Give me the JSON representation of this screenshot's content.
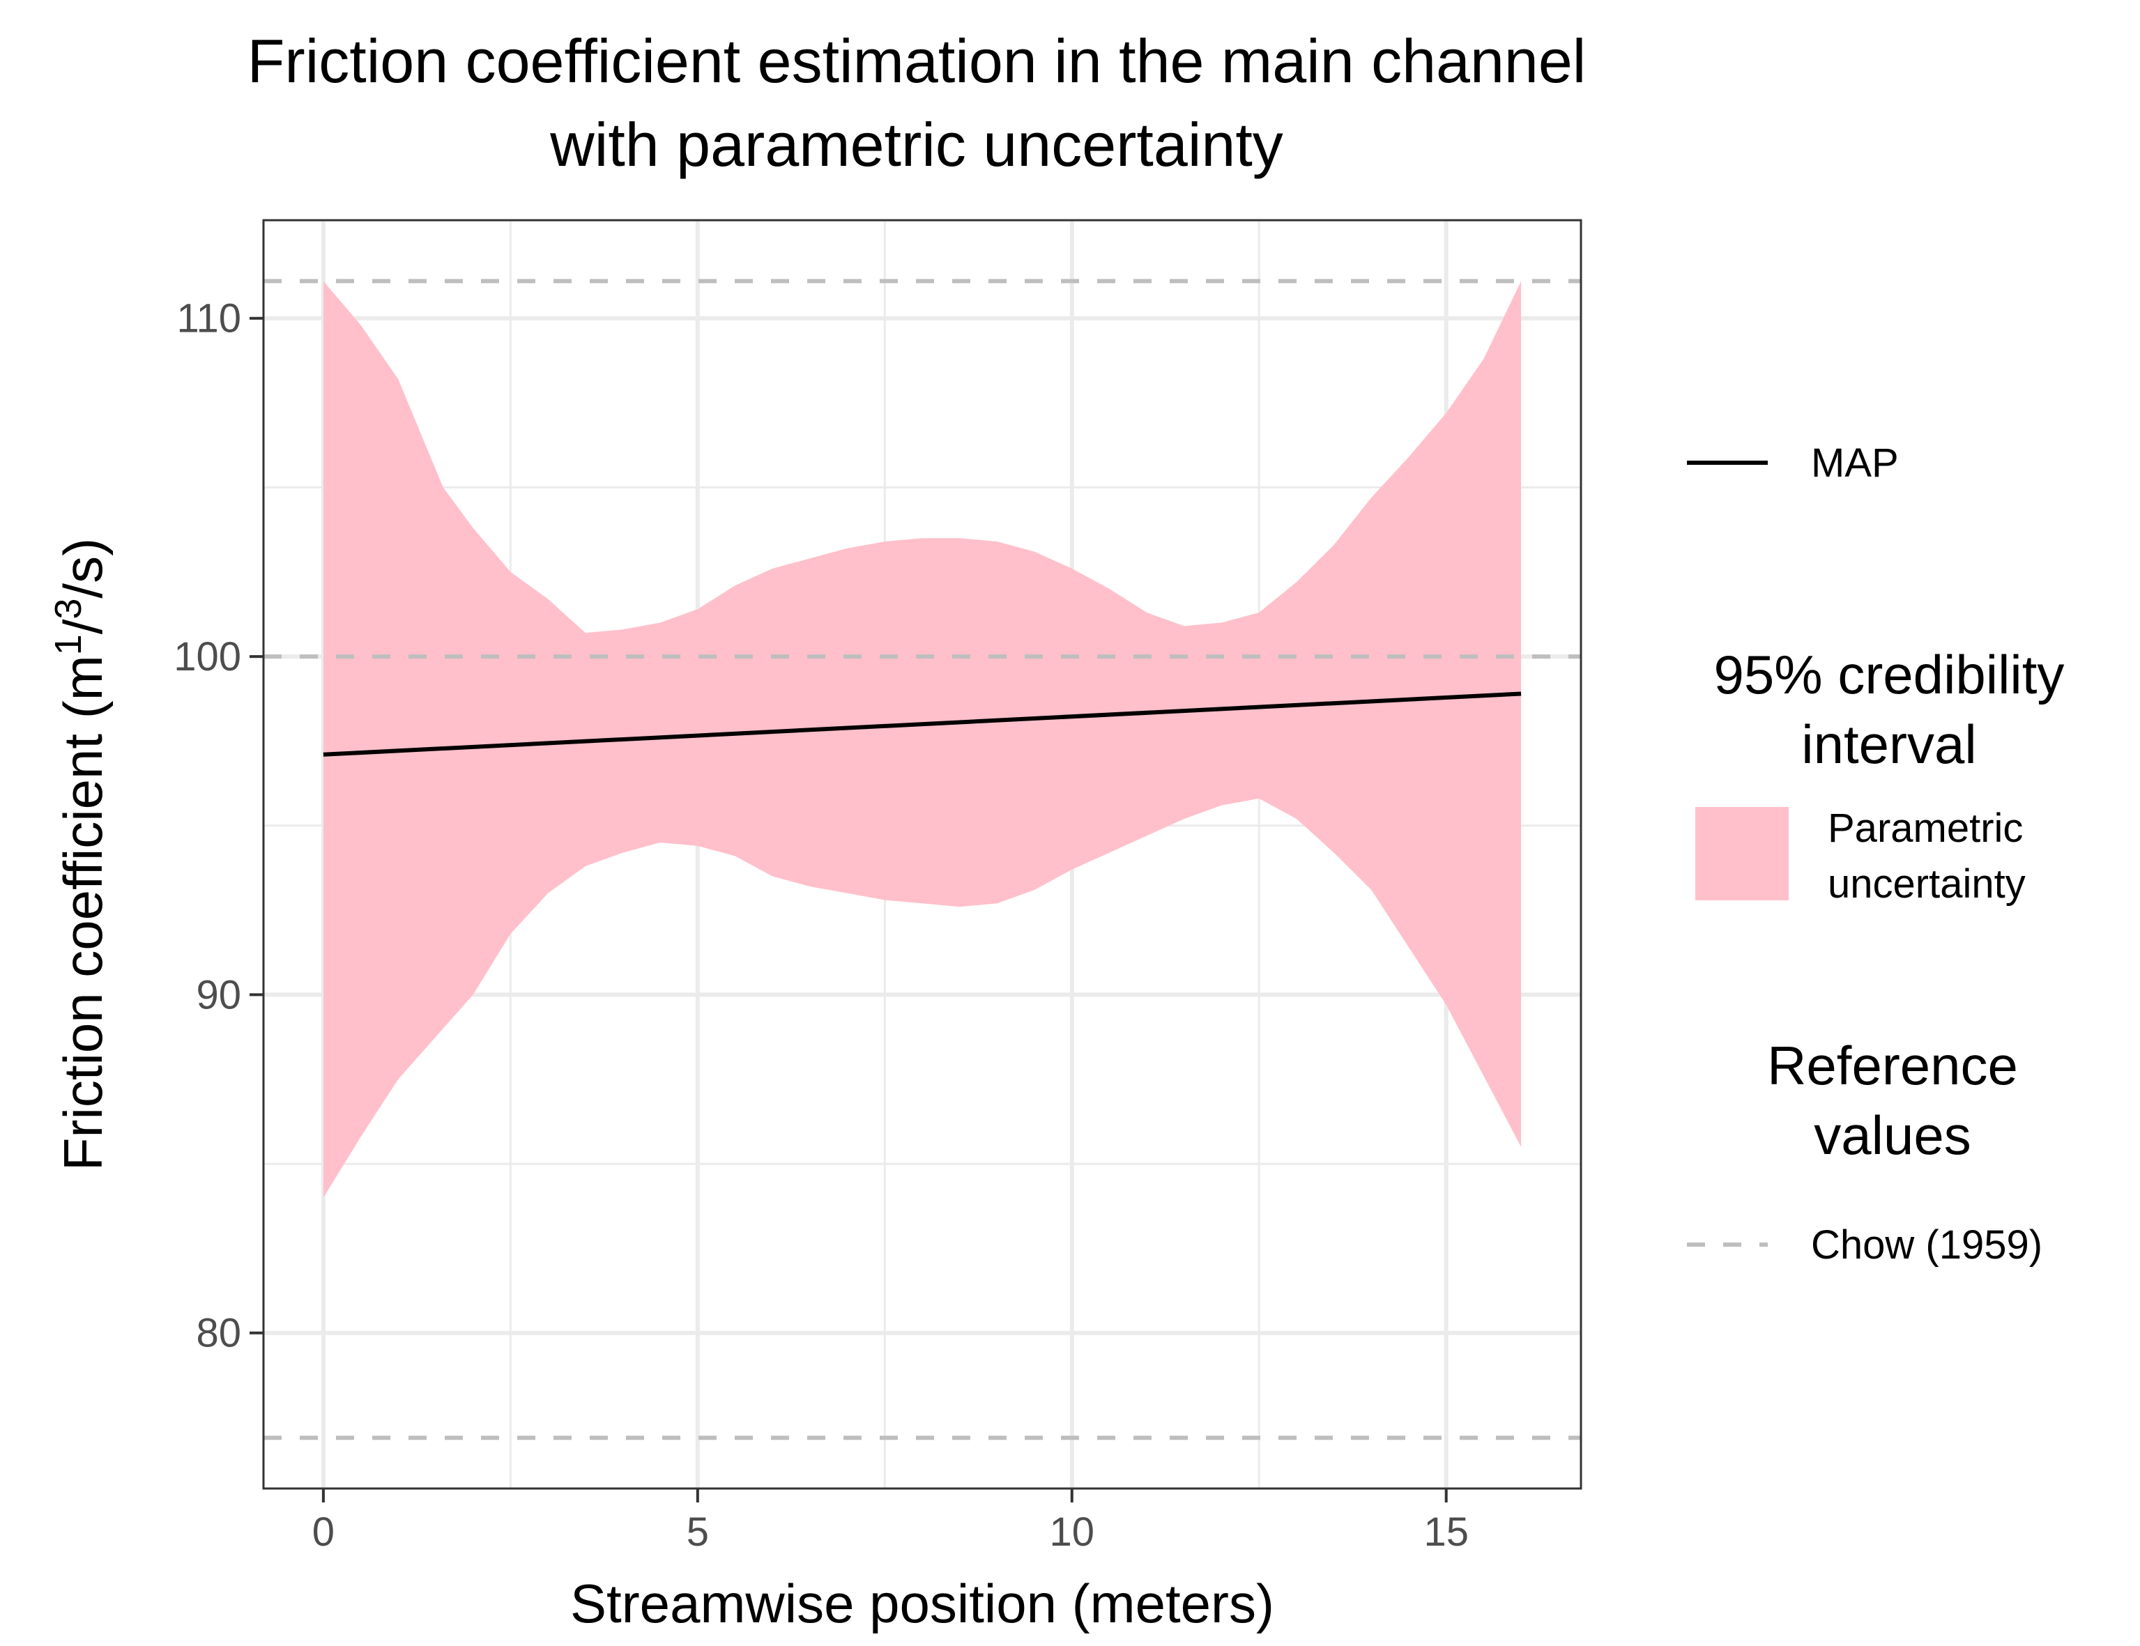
{
  "chart_data": {
    "type": "line",
    "title_lines": [
      "Friction coefficient estimation in the main channel",
      "with parametric uncertainty"
    ],
    "xlabel": "Streamwise position (meters)",
    "ylabel": {
      "main": "Friction coefficient (m",
      "sup1": "1",
      "slash": "/",
      "sup2": "3",
      "tail": "/s)"
    },
    "xlim": [
      -0.8,
      16.8
    ],
    "ylim": [
      75.4,
      112.9
    ],
    "x_ticks": [
      0,
      5,
      10,
      15
    ],
    "y_ticks": [
      80,
      90,
      100,
      110
    ],
    "grid": true,
    "colors": {
      "band": "#ffc0cb",
      "map": "#000000",
      "reference": "#bebebe",
      "grid": "#ebebeb",
      "border": "#333333",
      "tick_text": "#4d4d4d"
    },
    "series": [
      {
        "name": "MAP",
        "x": [
          0,
          16
        ],
        "y": [
          97.1,
          98.9
        ]
      },
      {
        "name": "Parametric uncertainty",
        "kind": "band",
        "x": [
          0,
          0.5,
          1,
          1.6,
          2,
          2.5,
          3,
          3.5,
          4,
          4.5,
          5,
          5.5,
          6,
          6.5,
          7,
          7.5,
          8,
          8.5,
          9,
          9.5,
          10,
          10.5,
          11,
          11.5,
          12,
          12.5,
          13,
          13.5,
          14,
          14.5,
          15,
          15.5,
          16
        ],
        "upper": [
          111.1,
          109.8,
          108.2,
          105.0,
          103.8,
          102.5,
          101.7,
          100.7,
          100.8,
          101.0,
          101.4,
          102.1,
          102.6,
          102.9,
          103.2,
          103.4,
          103.5,
          103.5,
          103.4,
          103.1,
          102.6,
          102.0,
          101.3,
          100.9,
          101.0,
          101.3,
          102.2,
          103.3,
          104.7,
          105.9,
          107.2,
          108.8,
          111.1
        ],
        "lower": [
          84.0,
          85.8,
          87.5,
          89.0,
          90.0,
          91.8,
          93.0,
          93.8,
          94.2,
          94.5,
          94.4,
          94.1,
          93.5,
          93.2,
          93.0,
          92.8,
          92.7,
          92.6,
          92.7,
          93.1,
          93.7,
          94.2,
          94.7,
          95.2,
          95.6,
          95.8,
          95.2,
          94.2,
          93.1,
          91.4,
          89.7,
          87.6,
          85.5
        ]
      },
      {
        "name": "Chow (1959)",
        "kind": "reference",
        "y_values": [
          111.1,
          100.0,
          76.9
        ]
      }
    ],
    "legend": [
      {
        "title": "",
        "entries": [
          {
            "key": "line",
            "label": "MAP"
          }
        ]
      },
      {
        "title_lines": [
          "95% credibility",
          "interval"
        ],
        "entries": [
          {
            "key": "fill",
            "label_lines": [
              "Parametric",
              "uncertainty"
            ]
          }
        ]
      },
      {
        "title_lines": [
          "Reference",
          "values"
        ],
        "entries": [
          {
            "key": "dashed",
            "label": "Chow (1959)"
          }
        ]
      }
    ],
    "legend_position": "right"
  }
}
